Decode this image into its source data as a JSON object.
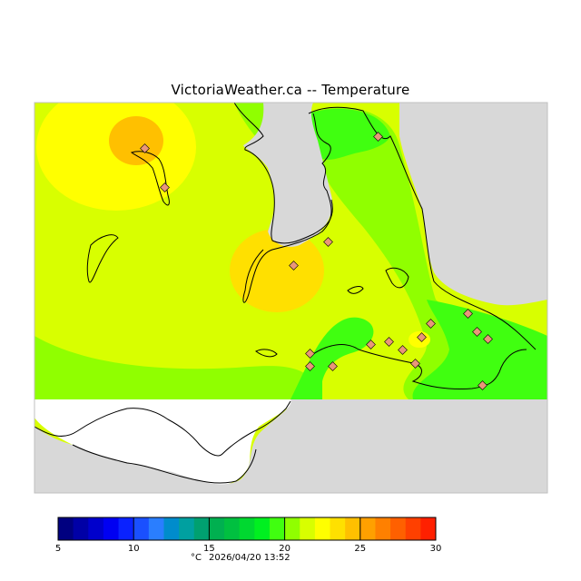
{
  "title": "VictoriaWeather.ca -- Temperature",
  "colorbar": {
    "unit": "°C",
    "ticks": [
      "5",
      "10",
      "15",
      "20",
      "25",
      "30"
    ],
    "min": 5,
    "max": 30,
    "step": 1,
    "colors": [
      "#000080",
      "#0000a6",
      "#0000cc",
      "#0000f2",
      "#0a22ff",
      "#1a50ff",
      "#2a7eff",
      "#008ccc",
      "#00a0a0",
      "#00a070",
      "#00b050",
      "#00c040",
      "#00d830",
      "#00f020",
      "#40ff10",
      "#90ff00",
      "#d8ff00",
      "#ffff00",
      "#ffe000",
      "#ffc000",
      "#ffa000",
      "#ff8000",
      "#ff6000",
      "#ff4000",
      "#ff2000"
    ]
  },
  "timestamp": "2026/04/20 13:52",
  "legend_unit_caption": "°C",
  "map": {
    "colors": {
      "land_outside": "#d8d8d8",
      "water_outside": "#ffffff",
      "outline": "#000000",
      "station_fill": "#e9967a"
    },
    "temperature_zones": [
      {
        "label": "19-20",
        "color": "#90ff00"
      },
      {
        "label": "20-21",
        "color": "#d8ff00"
      },
      {
        "label": "21-22",
        "color": "#ffff00"
      },
      {
        "label": "22-23",
        "color": "#ffe000"
      },
      {
        "label": "23-24",
        "color": "#ffc000"
      },
      {
        "label": "18-19",
        "color": "#40ff10"
      },
      {
        "label": "17-18",
        "color": "#00f020"
      }
    ]
  }
}
